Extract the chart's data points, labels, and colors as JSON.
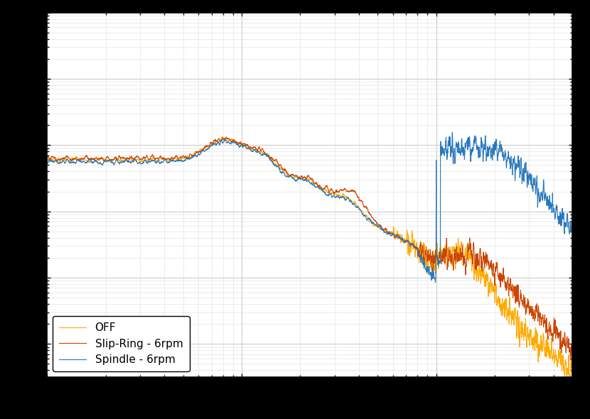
{
  "legend_labels": [
    "Spindle - 6rpm",
    "Slip-Ring - 6rpm",
    "OFF"
  ],
  "line_colors": {
    "spindle": "#2878be",
    "slipring": "#cc4400",
    "off": "#ffaa00"
  },
  "xlim": [
    1,
    500
  ],
  "bg_color": "#ffffff",
  "fig_bg_color": "#000000",
  "grid_major_color": "#cccccc",
  "grid_minor_color": "#dddddd",
  "linewidth": 0.8,
  "legend_loc": "lower left",
  "seed": 7
}
